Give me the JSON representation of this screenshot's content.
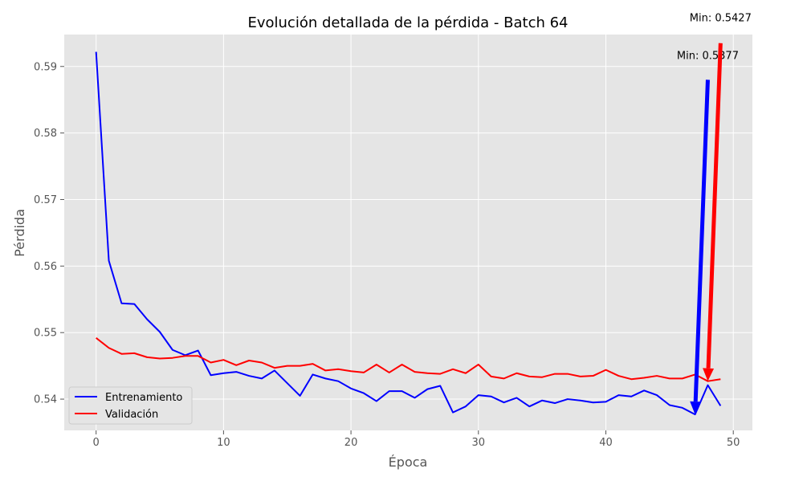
{
  "chart_data": {
    "type": "line",
    "title": "Evolución detallada de la pérdida - Batch 64",
    "xlabel": "Época",
    "ylabel": "Pérdida",
    "xlim": [
      -2.5,
      51.5
    ],
    "ylim": [
      0.5353,
      0.5948
    ],
    "x_ticks": [
      0,
      10,
      20,
      30,
      40,
      50
    ],
    "y_ticks": [
      0.54,
      0.55,
      0.56,
      0.57,
      0.58,
      0.59
    ],
    "grid": true,
    "legend_position": "lower-left",
    "x": [
      0,
      1,
      2,
      3,
      4,
      5,
      6,
      7,
      8,
      9,
      10,
      11,
      12,
      13,
      14,
      15,
      16,
      17,
      18,
      19,
      20,
      21,
      22,
      23,
      24,
      25,
      26,
      27,
      28,
      29,
      30,
      31,
      32,
      33,
      34,
      35,
      36,
      37,
      38,
      39,
      40,
      41,
      42,
      43,
      44,
      45,
      46,
      47,
      48,
      49
    ],
    "series": [
      {
        "name": "Entrenamiento",
        "color": "#0000ff",
        "values": [
          0.5922,
          0.5608,
          0.5544,
          0.5543,
          0.552,
          0.5501,
          0.5474,
          0.5466,
          0.5473,
          0.5436,
          0.5439,
          0.5441,
          0.5435,
          0.5431,
          0.5443,
          0.5424,
          0.5405,
          0.5437,
          0.5431,
          0.5427,
          0.5416,
          0.5409,
          0.5397,
          0.5412,
          0.5412,
          0.5402,
          0.5415,
          0.542,
          0.538,
          0.5389,
          0.5406,
          0.5404,
          0.5395,
          0.5402,
          0.5389,
          0.5398,
          0.5394,
          0.54,
          0.5398,
          0.5395,
          0.5396,
          0.5406,
          0.5404,
          0.5413,
          0.5406,
          0.5391,
          0.5387,
          0.5377,
          0.5421,
          0.539
        ]
      },
      {
        "name": "Validación",
        "color": "#ff0000",
        "values": [
          0.5492,
          0.5477,
          0.5468,
          0.5469,
          0.5463,
          0.5461,
          0.5462,
          0.5465,
          0.5465,
          0.5455,
          0.5459,
          0.5451,
          0.5458,
          0.5455,
          0.5447,
          0.545,
          0.545,
          0.5453,
          0.5443,
          0.5445,
          0.5442,
          0.544,
          0.5452,
          0.544,
          0.5452,
          0.5441,
          0.5439,
          0.5438,
          0.5445,
          0.5439,
          0.5452,
          0.5434,
          0.5431,
          0.5439,
          0.5434,
          0.5433,
          0.5438,
          0.5438,
          0.5434,
          0.5435,
          0.5444,
          0.5435,
          0.543,
          0.5432,
          0.5435,
          0.5431,
          0.5431,
          0.5437,
          0.5427,
          0.543
        ]
      }
    ],
    "annotations": [
      {
        "label": "Min: 0.5377",
        "color": "#0000ff",
        "point": [
          47,
          0.5377
        ],
        "tail": [
          48,
          0.588
        ],
        "text_anchor": [
          48,
          0.5911
        ]
      },
      {
        "label": "Min: 0.5427",
        "color": "#ff0000",
        "point": [
          48,
          0.5427
        ],
        "tail": [
          49,
          0.5935
        ],
        "text_anchor": [
          49,
          0.5968
        ]
      }
    ]
  }
}
